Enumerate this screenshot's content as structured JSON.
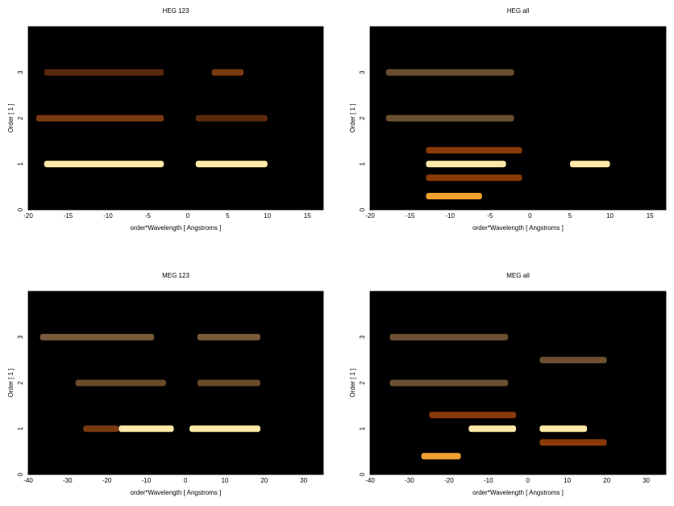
{
  "chart_data": [
    {
      "type": "heatmap",
      "title": "HEG 123",
      "xlabel": "order*Wavelength [ Angstroms ]",
      "ylabel": "Order [ 1 ]",
      "xlim": [
        -20,
        17
      ],
      "ylim": [
        0,
        4
      ],
      "xticks": [
        -20,
        -15,
        -10,
        -5,
        0,
        5,
        10,
        15
      ],
      "yticks": [
        0,
        1,
        2,
        3
      ],
      "streaks": [
        {
          "x": [
            -18,
            -3
          ],
          "y": 1,
          "color": "#ffe9a8"
        },
        {
          "x": [
            1,
            10
          ],
          "y": 1,
          "color": "#ffe9a8"
        },
        {
          "x": [
            -19,
            -3
          ],
          "y": 2,
          "color": "#7a3a10"
        },
        {
          "x": [
            1,
            10
          ],
          "y": 2,
          "color": "#5a2a0c"
        },
        {
          "x": [
            -18,
            -3
          ],
          "y": 3,
          "color": "#5a2a0c"
        },
        {
          "x": [
            3,
            7
          ],
          "y": 3,
          "color": "#7a3a10"
        }
      ]
    },
    {
      "type": "heatmap",
      "title": "HEG all",
      "xlabel": "order*Wavelength [ Angstroms ]",
      "ylabel": "Order [ 1 ]",
      "xlim": [
        -20,
        17
      ],
      "ylim": [
        0,
        4
      ],
      "xticks": [
        -20,
        -15,
        -10,
        -5,
        0,
        5,
        10,
        15
      ],
      "yticks": [
        0,
        1,
        2,
        3
      ],
      "streaks": [
        {
          "x": [
            -13,
            -3
          ],
          "y": 1,
          "color": "#ffe9a8"
        },
        {
          "x": [
            5,
            10
          ],
          "y": 1,
          "color": "#ffe9a8"
        },
        {
          "x": [
            -13,
            -1
          ],
          "y": 1.3,
          "color": "#8a3a08"
        },
        {
          "x": [
            -13,
            -1
          ],
          "y": 0.7,
          "color": "#8a3a08"
        },
        {
          "x": [
            -13,
            -6
          ],
          "y": 0.3,
          "color": "#f0a030"
        },
        {
          "x": [
            -18,
            -2
          ],
          "y": 2,
          "color": "#6a5030"
        },
        {
          "x": [
            -18,
            -2
          ],
          "y": 3,
          "color": "#6a5030"
        }
      ]
    },
    {
      "type": "heatmap",
      "title": "MEG 123",
      "xlabel": "order*Wavelength [ Angstroms ]",
      "ylabel": "Order [ 1 ]",
      "xlim": [
        -40,
        35
      ],
      "ylim": [
        0,
        4
      ],
      "xticks": [
        -40,
        -30,
        -20,
        -10,
        0,
        10,
        20,
        30
      ],
      "yticks": [
        0,
        1,
        2,
        3
      ],
      "streaks": [
        {
          "x": [
            -17,
            -3
          ],
          "y": 1,
          "color": "#ffe9a8"
        },
        {
          "x": [
            1,
            19
          ],
          "y": 1,
          "color": "#ffe9a8"
        },
        {
          "x": [
            -26,
            -17
          ],
          "y": 1,
          "color": "#7a3a10"
        },
        {
          "x": [
            -28,
            -5
          ],
          "y": 2,
          "color": "#6a4a2a"
        },
        {
          "x": [
            3,
            19
          ],
          "y": 2,
          "color": "#6a4a2a"
        },
        {
          "x": [
            -37,
            -8
          ],
          "y": 3,
          "color": "#7a5a3a"
        },
        {
          "x": [
            3,
            19
          ],
          "y": 3,
          "color": "#7a5a3a"
        }
      ]
    },
    {
      "type": "heatmap",
      "title": "MEG all",
      "xlabel": "order*Wavelength [ Angstroms ]",
      "ylabel": "Order [ 1 ]",
      "xlim": [
        -40,
        35
      ],
      "ylim": [
        0,
        4
      ],
      "xticks": [
        -40,
        -30,
        -20,
        -10,
        0,
        10,
        20,
        30
      ],
      "yticks": [
        0,
        1,
        2,
        3
      ],
      "streaks": [
        {
          "x": [
            -15,
            -3
          ],
          "y": 1,
          "color": "#ffe9a8"
        },
        {
          "x": [
            3,
            15
          ],
          "y": 1,
          "color": "#ffe9a8"
        },
        {
          "x": [
            -25,
            -3
          ],
          "y": 1.3,
          "color": "#8a3a08"
        },
        {
          "x": [
            3,
            20
          ],
          "y": 0.7,
          "color": "#8a3a08"
        },
        {
          "x": [
            -27,
            -17
          ],
          "y": 0.4,
          "color": "#f0a030"
        },
        {
          "x": [
            -35,
            -5
          ],
          "y": 2,
          "color": "#6a5030"
        },
        {
          "x": [
            -35,
            -5
          ],
          "y": 3,
          "color": "#6a5030"
        },
        {
          "x": [
            3,
            20
          ],
          "y": 2.5,
          "color": "#6a5030"
        }
      ]
    }
  ]
}
